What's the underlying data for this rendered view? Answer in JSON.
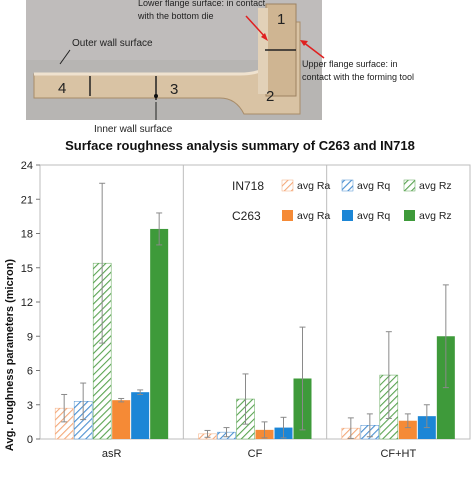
{
  "photo": {
    "annotations": {
      "lower_flange": [
        "Lower flange surface: in contact",
        "with the bottom die"
      ],
      "outer_wall": "Outer wall surface",
      "upper_flange": [
        "Upper flange surface: in",
        "contact with the forming tool"
      ],
      "inner_wall": "Inner wall surface"
    },
    "sample_labels": [
      "1",
      "2",
      "3",
      "4"
    ]
  },
  "chart_data": {
    "type": "bar",
    "title": "Surface roughness analysis summary of C263 and IN718",
    "ylabel": "Avg. roughness parameters (micron)",
    "xlabel": "",
    "categories": [
      "asR",
      "CF",
      "CF+HT"
    ],
    "ylim": [
      0,
      24
    ],
    "yticks": [
      0,
      3,
      6,
      9,
      12,
      15,
      18,
      21,
      24
    ],
    "grid": false,
    "legend_placement": "top-right",
    "legend_groups": [
      {
        "label": "IN718",
        "entries": [
          "avg Ra",
          "avg Rq",
          "avg Rz"
        ]
      },
      {
        "label": "C263",
        "entries": [
          "avg Ra",
          "avg Rq",
          "avg Rz"
        ]
      }
    ],
    "series": [
      {
        "material": "IN718",
        "param": "avg Ra",
        "pattern": "hatch",
        "color": "#f4a97a",
        "values": [
          2.7,
          0.45,
          0.95
        ],
        "errors": [
          1.2,
          0.3,
          0.9
        ]
      },
      {
        "material": "IN718",
        "param": "avg Rq",
        "pattern": "hatch",
        "color": "#4a8fd0",
        "values": [
          3.3,
          0.6,
          1.2
        ],
        "errors": [
          1.6,
          0.4,
          1.0
        ]
      },
      {
        "material": "IN718",
        "param": "avg Rz",
        "pattern": "hatch",
        "color": "#5aa452",
        "values": [
          15.4,
          3.5,
          5.6
        ],
        "errors": [
          7.0,
          2.2,
          3.8
        ]
      },
      {
        "material": "C263",
        "param": "avg Ra",
        "pattern": "solid",
        "color": "#f58a36",
        "values": [
          3.4,
          0.8,
          1.6
        ],
        "errors": [
          0.15,
          0.7,
          0.6
        ]
      },
      {
        "material": "C263",
        "param": "avg Rq",
        "pattern": "solid",
        "color": "#1c86d6",
        "values": [
          4.1,
          1.0,
          2.0
        ],
        "errors": [
          0.2,
          0.9,
          1.0
        ]
      },
      {
        "material": "C263",
        "param": "avg Rz",
        "pattern": "solid",
        "color": "#3e9a3a",
        "values": [
          18.4,
          5.3,
          9.0
        ],
        "errors": [
          1.4,
          4.5,
          4.5
        ]
      }
    ]
  }
}
